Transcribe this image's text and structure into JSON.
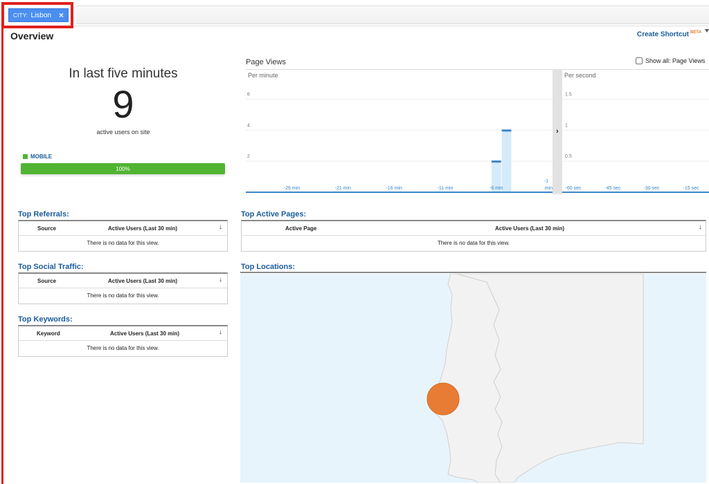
{
  "filter": {
    "key": "CITY:",
    "value": "Lisbon",
    "close": "×"
  },
  "page": {
    "title": "Overview"
  },
  "header": {
    "shortcut_label": "Create Shortcut",
    "beta": "BETA"
  },
  "summary": {
    "headline": "In last five minutes",
    "active_users": "9",
    "active_label": "active users on site",
    "device_label": "MOBILE",
    "device_color": "#50b432",
    "device_percent_label": "100%",
    "device_percent": 100
  },
  "page_views": {
    "title": "Page Views",
    "show_all_label": "Show all: Page Views",
    "left_panel": {
      "label": "Per minute",
      "y_ticks": [
        "6",
        "4",
        "2"
      ],
      "x_ticks": [
        "-26 min",
        "-21 min",
        "-16 min",
        "-11 min",
        "-6 min",
        "-1 min"
      ],
      "expand": "›"
    },
    "right_panel": {
      "label": "Per second",
      "y_ticks": [
        "1.5",
        "1",
        "0.5"
      ],
      "x_ticks": [
        "-60 sec",
        "-45 sec",
        "-30 sec",
        "-15 sec"
      ]
    }
  },
  "chart_data": {
    "type": "bar",
    "series": [
      {
        "values": [
          0,
          0,
          0,
          0,
          0,
          0,
          0,
          0,
          0,
          0,
          0,
          0,
          0,
          0,
          0,
          0,
          0,
          0,
          0,
          0,
          0,
          0,
          0,
          0,
          2,
          4,
          0,
          0,
          0,
          0
        ]
      }
    ],
    "x_min": -30,
    "x_max": -1,
    "ylim": [
      0,
      7
    ],
    "bar_color": "#d6ebfa",
    "cap_color": "#3a86c8"
  },
  "referrals": {
    "title": "Top Referrals:",
    "col1": "Source",
    "col2": "Active Users (Last 30 min)",
    "empty": "There is no data for this view."
  },
  "social": {
    "title": "Top Social Traffic:",
    "col1": "Source",
    "col2": "Active Users (Last 30 min)",
    "empty": "There is no data for this view."
  },
  "keywords": {
    "title": "Top Keywords:",
    "col1": "Keyword",
    "col2": "Active Users (Last 30 min)",
    "empty": "There is no data for this view."
  },
  "active_pages": {
    "title": "Top Active Pages:",
    "col1": "Active Page",
    "col2": "Active Users (Last 30 min)",
    "empty": "There is no data for this view."
  },
  "locations": {
    "title": "Top Locations:",
    "sea_color": "#e8f4fc",
    "land_color": "#f2f2f2",
    "marker_color": "#e87c34"
  }
}
